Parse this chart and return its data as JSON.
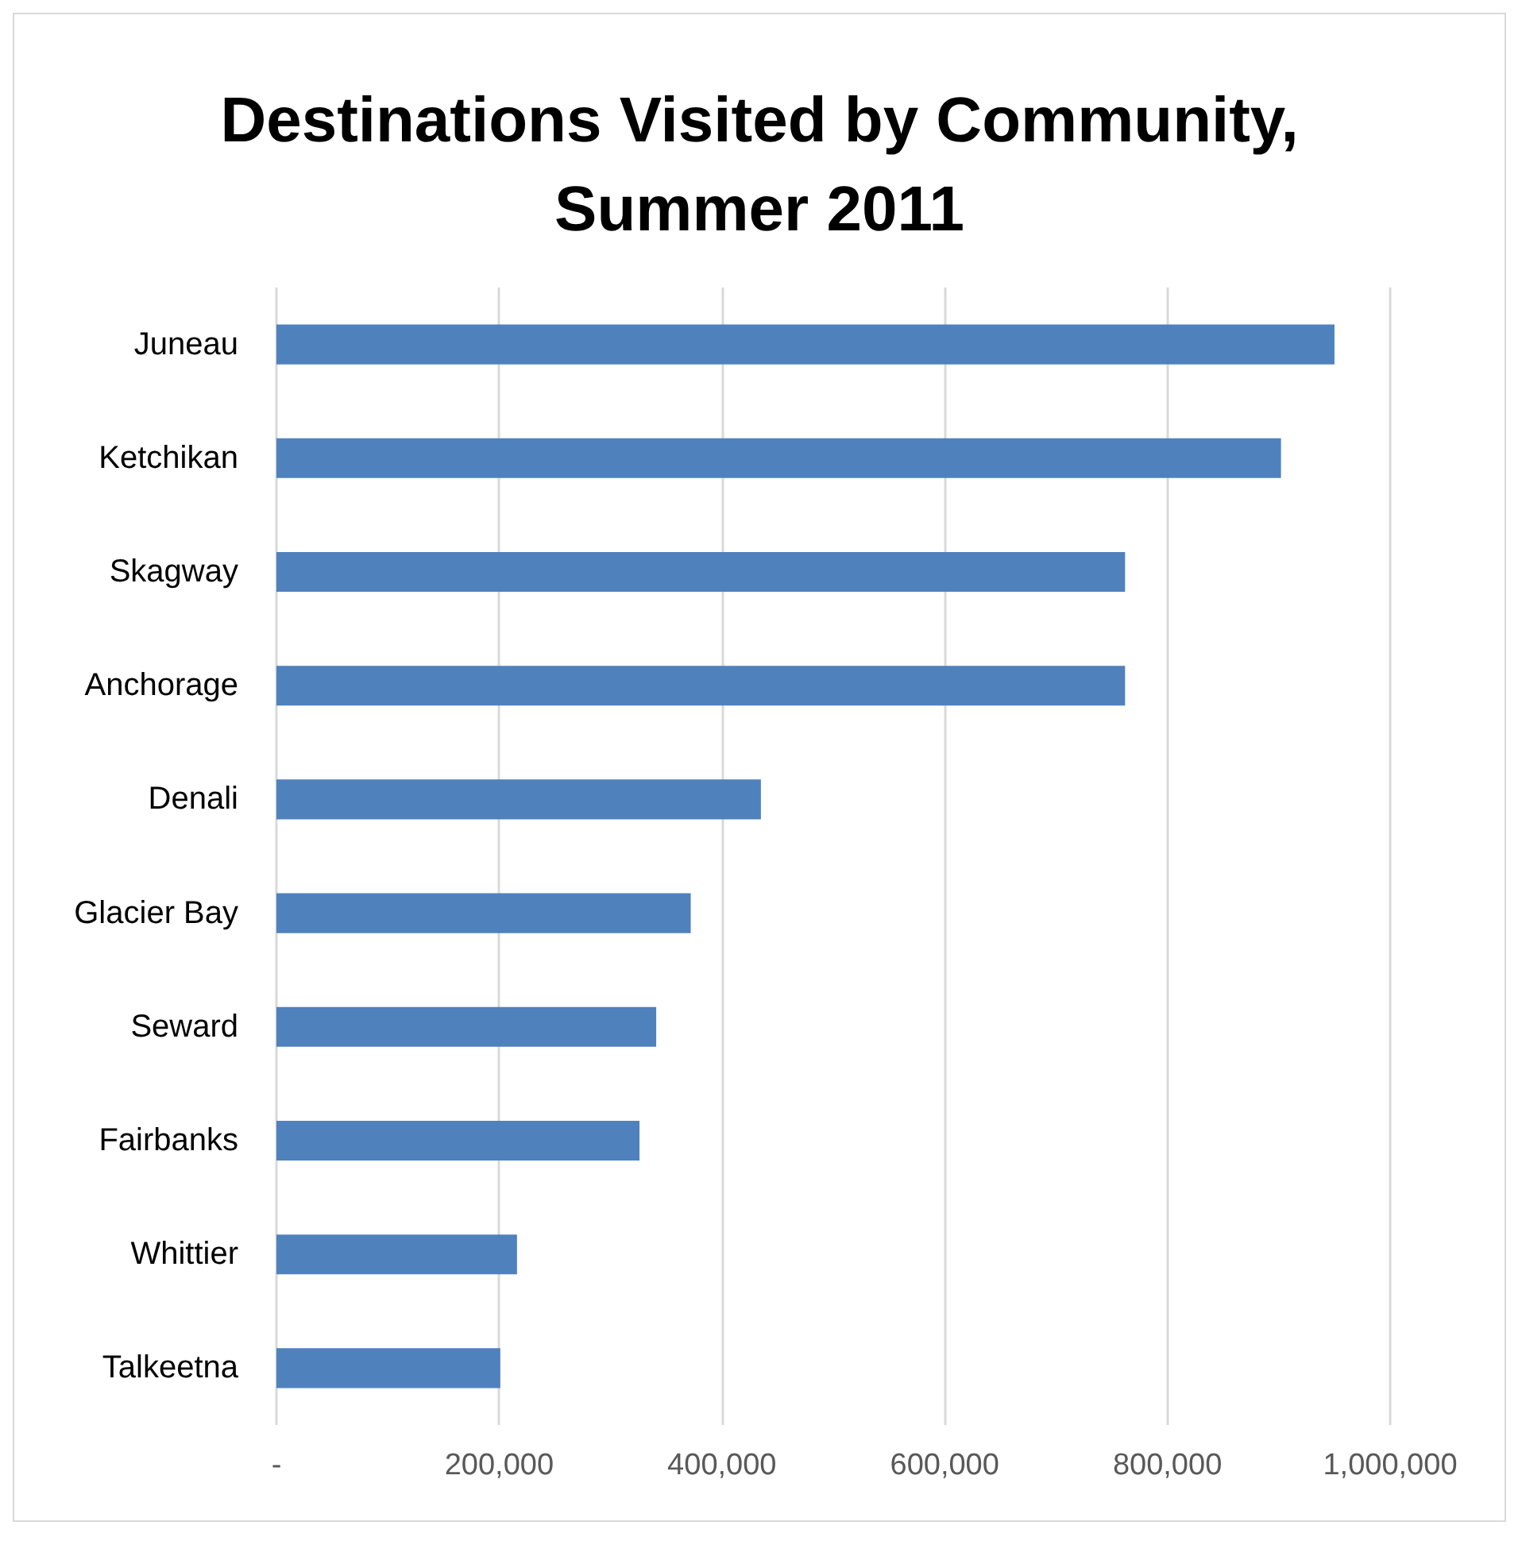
{
  "chart_data": {
    "type": "bar",
    "orientation": "horizontal",
    "title": "Destinations Visited by Community,\nSummer 2011",
    "categories": [
      "Juneau",
      "Ketchikan",
      "Skagway",
      "Anchorage",
      "Denali",
      "Glacier Bay",
      "Seward",
      "Fairbanks",
      "Whittier",
      "Talkeetna"
    ],
    "values": [
      950000,
      902000,
      762000,
      762000,
      435000,
      372000,
      341000,
      326000,
      216000,
      201000
    ],
    "color": "#4f81bd",
    "xlim": [
      0,
      1000000
    ],
    "xticks": [
      {
        "value": 0,
        "label": "-"
      },
      {
        "value": 200000,
        "label": "200,000"
      },
      {
        "value": 400000,
        "label": "400,000"
      },
      {
        "value": 600000,
        "label": "600,000"
      },
      {
        "value": 800000,
        "label": "800,000"
      },
      {
        "value": 1000000,
        "label": "1,000,000"
      }
    ],
    "grid": "x"
  }
}
